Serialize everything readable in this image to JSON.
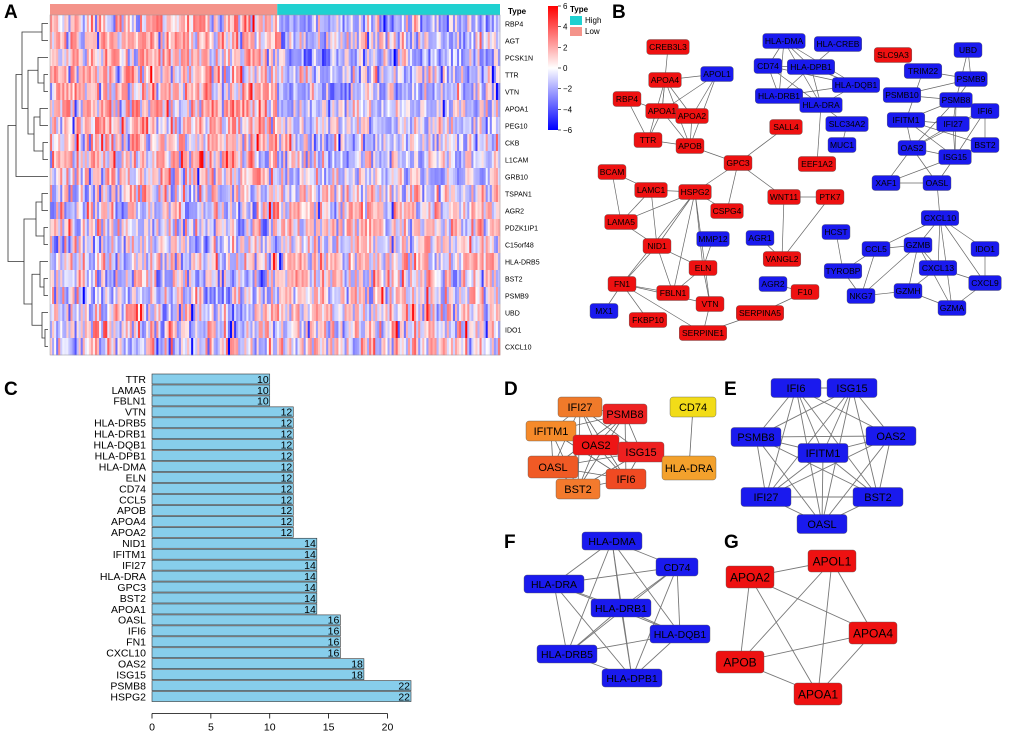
{
  "panel_labels": [
    "A",
    "B",
    "C",
    "D",
    "E",
    "F",
    "G"
  ],
  "heatmap": {
    "genes": [
      "RBP4",
      "AGT",
      "PCSK1N",
      "TTR",
      "VTN",
      "APOA1",
      "PEG10",
      "CKB",
      "L1CAM",
      "GRB10",
      "TSPAN1",
      "AGR2",
      "PDZK1IP1",
      "C15orf48",
      "HLA-DRB5",
      "BST2",
      "PSMB9",
      "UBD",
      "IDO1",
      "CXCL10"
    ],
    "type_title": "Type",
    "legend_type_label": "Type",
    "legend_high": "High",
    "legend_low": "Low",
    "colors": {
      "high": "#1fd1d1",
      "low": "#f4938a",
      "pos": "#ff0000",
      "neg": "#0000ff",
      "mid": "#ffffff"
    },
    "colorbar_ticks": [
      6,
      4,
      2,
      0,
      -2,
      -4,
      -6
    ],
    "colorbar_labels": [
      "6",
      "4",
      "2",
      "0",
      "−2",
      "−4",
      "−6"
    ],
    "low_fraction": 0.505,
    "upper_group_high_bias": [
      -1.6,
      -0.6,
      -1.7,
      -1.2,
      -1.4,
      -0.9,
      -0.8,
      -1.0,
      -0.9,
      -0.8
    ],
    "lower_group_high_bias": [
      0.2,
      0.7,
      0.3,
      0.2,
      0.3,
      0.2,
      0.3,
      0.4,
      0.2,
      0.3
    ]
  },
  "network_B": {
    "colors": {
      "red": "#ee1111",
      "blue": "#1a1aee"
    },
    "nodes": [
      {
        "id": "CREB3L3",
        "c": "red"
      },
      {
        "id": "APOA4",
        "c": "red"
      },
      {
        "id": "APOL1",
        "c": "blue"
      },
      {
        "id": "RBP4",
        "c": "red"
      },
      {
        "id": "APOA1",
        "c": "red"
      },
      {
        "id": "APOA2",
        "c": "red"
      },
      {
        "id": "TTR",
        "c": "red"
      },
      {
        "id": "APOB",
        "c": "red"
      },
      {
        "id": "SALL4",
        "c": "red"
      },
      {
        "id": "GPC3",
        "c": "red"
      },
      {
        "id": "BCAM",
        "c": "red"
      },
      {
        "id": "LAMC1",
        "c": "red"
      },
      {
        "id": "HSPG2",
        "c": "red"
      },
      {
        "id": "CSPG4",
        "c": "red"
      },
      {
        "id": "LAMA5",
        "c": "red"
      },
      {
        "id": "NID1",
        "c": "red"
      },
      {
        "id": "MMP12",
        "c": "blue"
      },
      {
        "id": "ELN",
        "c": "red"
      },
      {
        "id": "FN1",
        "c": "red"
      },
      {
        "id": "FBLN1",
        "c": "red"
      },
      {
        "id": "VTN",
        "c": "red"
      },
      {
        "id": "MX1",
        "c": "blue"
      },
      {
        "id": "FKBP10",
        "c": "red"
      },
      {
        "id": "SERPINE1",
        "c": "red"
      },
      {
        "id": "SERPINA5",
        "c": "red"
      },
      {
        "id": "F10",
        "c": "red"
      },
      {
        "id": "AGR2",
        "c": "blue"
      },
      {
        "id": "AGR1",
        "c": "blue"
      },
      {
        "id": "VANGL2",
        "c": "red"
      },
      {
        "id": "WNT11",
        "c": "red"
      },
      {
        "id": "PTK7",
        "c": "red"
      },
      {
        "id": "EEF1A2",
        "c": "red"
      },
      {
        "id": "MUC1",
        "c": "blue"
      },
      {
        "id": "HLA-DMA",
        "c": "blue"
      },
      {
        "id": "HLA-CREB",
        "c": "blue"
      },
      {
        "id": "CD74",
        "c": "blue"
      },
      {
        "id": "HLA-DPB1",
        "c": "blue"
      },
      {
        "id": "HLA-DQB1",
        "c": "blue"
      },
      {
        "id": "HLA-DRB1",
        "c": "blue"
      },
      {
        "id": "HLA-DRA",
        "c": "blue"
      },
      {
        "id": "SLC34A2",
        "c": "blue"
      },
      {
        "id": "SLC9A3",
        "c": "red"
      },
      {
        "id": "UBD",
        "c": "blue"
      },
      {
        "id": "PSMB9",
        "c": "blue"
      },
      {
        "id": "PSMB8",
        "c": "blue"
      },
      {
        "id": "TRIM22",
        "c": "blue"
      },
      {
        "id": "PSMB10",
        "c": "blue"
      },
      {
        "id": "IFITM1",
        "c": "blue"
      },
      {
        "id": "IFI27",
        "c": "blue"
      },
      {
        "id": "IFI6",
        "c": "blue"
      },
      {
        "id": "OAS2",
        "c": "blue"
      },
      {
        "id": "ISG15",
        "c": "blue"
      },
      {
        "id": "BST2",
        "c": "blue"
      },
      {
        "id": "OASL",
        "c": "blue"
      },
      {
        "id": "XAF1",
        "c": "blue"
      },
      {
        "id": "CXCL10",
        "c": "blue"
      },
      {
        "id": "HCST",
        "c": "blue"
      },
      {
        "id": "TYROBP",
        "c": "blue"
      },
      {
        "id": "CCL5",
        "c": "blue"
      },
      {
        "id": "GZMB",
        "c": "blue"
      },
      {
        "id": "IDO1",
        "c": "blue"
      },
      {
        "id": "CXCL13",
        "c": "blue"
      },
      {
        "id": "CXCL9",
        "c": "blue"
      },
      {
        "id": "NKG7",
        "c": "blue"
      },
      {
        "id": "GZMA",
        "c": "blue"
      },
      {
        "id": "GZMH",
        "c": "blue"
      }
    ]
  },
  "chart_data": {
    "type": "bar",
    "orientation": "horizontal",
    "categories": [
      "TTR",
      "LAMA5",
      "FBLN1",
      "VTN",
      "HLA-DRB5",
      "HLA-DRB1",
      "HLA-DQB1",
      "HLA-DPB1",
      "HLA-DMA",
      "ELN",
      "CD74",
      "CCL5",
      "APOB",
      "APOA4",
      "APOA2",
      "NID1",
      "IFITM1",
      "IFI27",
      "HLA-DRA",
      "GPC3",
      "BST2",
      "APOA1",
      "OASL",
      "IFI6",
      "FN1",
      "CXCL10",
      "OAS2",
      "ISG15",
      "PSMB8",
      "HSPG2"
    ],
    "values": [
      10,
      10,
      10,
      12,
      12,
      12,
      12,
      12,
      12,
      12,
      12,
      12,
      12,
      12,
      12,
      14,
      14,
      14,
      14,
      14,
      14,
      14,
      16,
      16,
      16,
      16,
      18,
      18,
      22,
      22
    ],
    "value_labels": [
      "10",
      "10",
      "10",
      "12",
      "12",
      "12",
      "12",
      "12",
      "12",
      "12",
      "12",
      "12",
      "12",
      "12",
      "12",
      "14",
      "14",
      "14",
      "14",
      "14",
      "14",
      "14",
      "16",
      "16",
      "16",
      "16",
      "18",
      "18",
      "22",
      "22"
    ],
    "xlim": [
      0,
      23
    ],
    "xticks": [
      0,
      5,
      10,
      15,
      20
    ],
    "xtick_labels": [
      "0",
      "5",
      "10",
      "15",
      "20"
    ],
    "bar_color": "#87ceeb",
    "title": "",
    "xlabel": "",
    "ylabel": ""
  },
  "network_D": {
    "nodes": [
      {
        "id": "IFI27",
        "color": "#f07a2a"
      },
      {
        "id": "PSMB8",
        "color": "#ee2222"
      },
      {
        "id": "IFITM1",
        "color": "#f58a2a"
      },
      {
        "id": "OAS2",
        "color": "#ee1515"
      },
      {
        "id": "ISG15",
        "color": "#ee2020"
      },
      {
        "id": "OASL",
        "color": "#f05a25"
      },
      {
        "id": "IFI6",
        "color": "#f04a22"
      },
      {
        "id": "BST2",
        "color": "#f37a2d"
      },
      {
        "id": "CD74",
        "color": "#f2dc18"
      },
      {
        "id": "HLA-DRA",
        "color": "#f3a12c"
      }
    ]
  },
  "network_E": {
    "color": "#1a1aee",
    "nodes": [
      "IFI6",
      "ISG15",
      "PSMB8",
      "OAS2",
      "IFITM1",
      "IFI27",
      "BST2",
      "OASL"
    ]
  },
  "network_F": {
    "color": "#1a1aee",
    "nodes": [
      "HLA-DMA",
      "CD74",
      "HLA-DRA",
      "HLA-DRB1",
      "HLA-DQB1",
      "HLA-DRB5",
      "HLA-DPB1"
    ]
  },
  "network_G": {
    "color": "#ee1111",
    "nodes": [
      "APOL1",
      "APOA2",
      "APOA4",
      "APOB",
      "APOA1"
    ]
  }
}
